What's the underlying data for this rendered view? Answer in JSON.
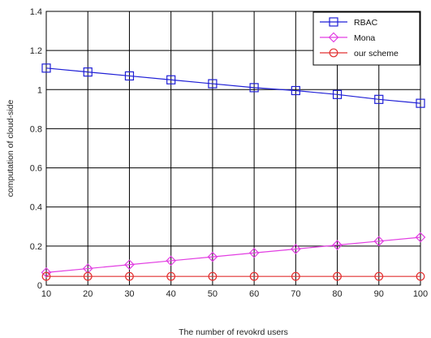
{
  "chart_data": {
    "type": "line",
    "title": "",
    "xlabel": "The number of revokrd users",
    "ylabel": "computation of cloud-side",
    "xlim": [
      10,
      100
    ],
    "ylim": [
      0,
      1.4
    ],
    "xticks": [
      10,
      20,
      30,
      40,
      50,
      60,
      70,
      80,
      90,
      100
    ],
    "yticks": [
      0,
      0.2,
      0.4,
      0.6,
      0.8,
      1,
      1.2,
      1.4
    ],
    "ytick_labels": [
      "0",
      "0.2",
      "0.4",
      "0.6",
      "0.8",
      "1",
      "1.2",
      "1.4"
    ],
    "grid": true,
    "legend_position": "top-right",
    "x": [
      10,
      20,
      30,
      40,
      50,
      60,
      70,
      80,
      90,
      100
    ],
    "series": [
      {
        "name": "RBAC",
        "color": "#1f1fd6",
        "marker": "square",
        "values": [
          1.11,
          1.09,
          1.07,
          1.05,
          1.03,
          1.01,
          0.995,
          0.975,
          0.95,
          0.93
        ]
      },
      {
        "name": "Mona",
        "color": "#e23ee2",
        "marker": "diamond",
        "values": [
          0.065,
          0.085,
          0.105,
          0.125,
          0.145,
          0.165,
          0.185,
          0.205,
          0.225,
          0.245
        ]
      },
      {
        "name": "our scheme",
        "color": "#e23030",
        "marker": "circle",
        "values": [
          0.045,
          0.045,
          0.045,
          0.045,
          0.045,
          0.045,
          0.045,
          0.045,
          0.045,
          0.045
        ]
      }
    ]
  }
}
